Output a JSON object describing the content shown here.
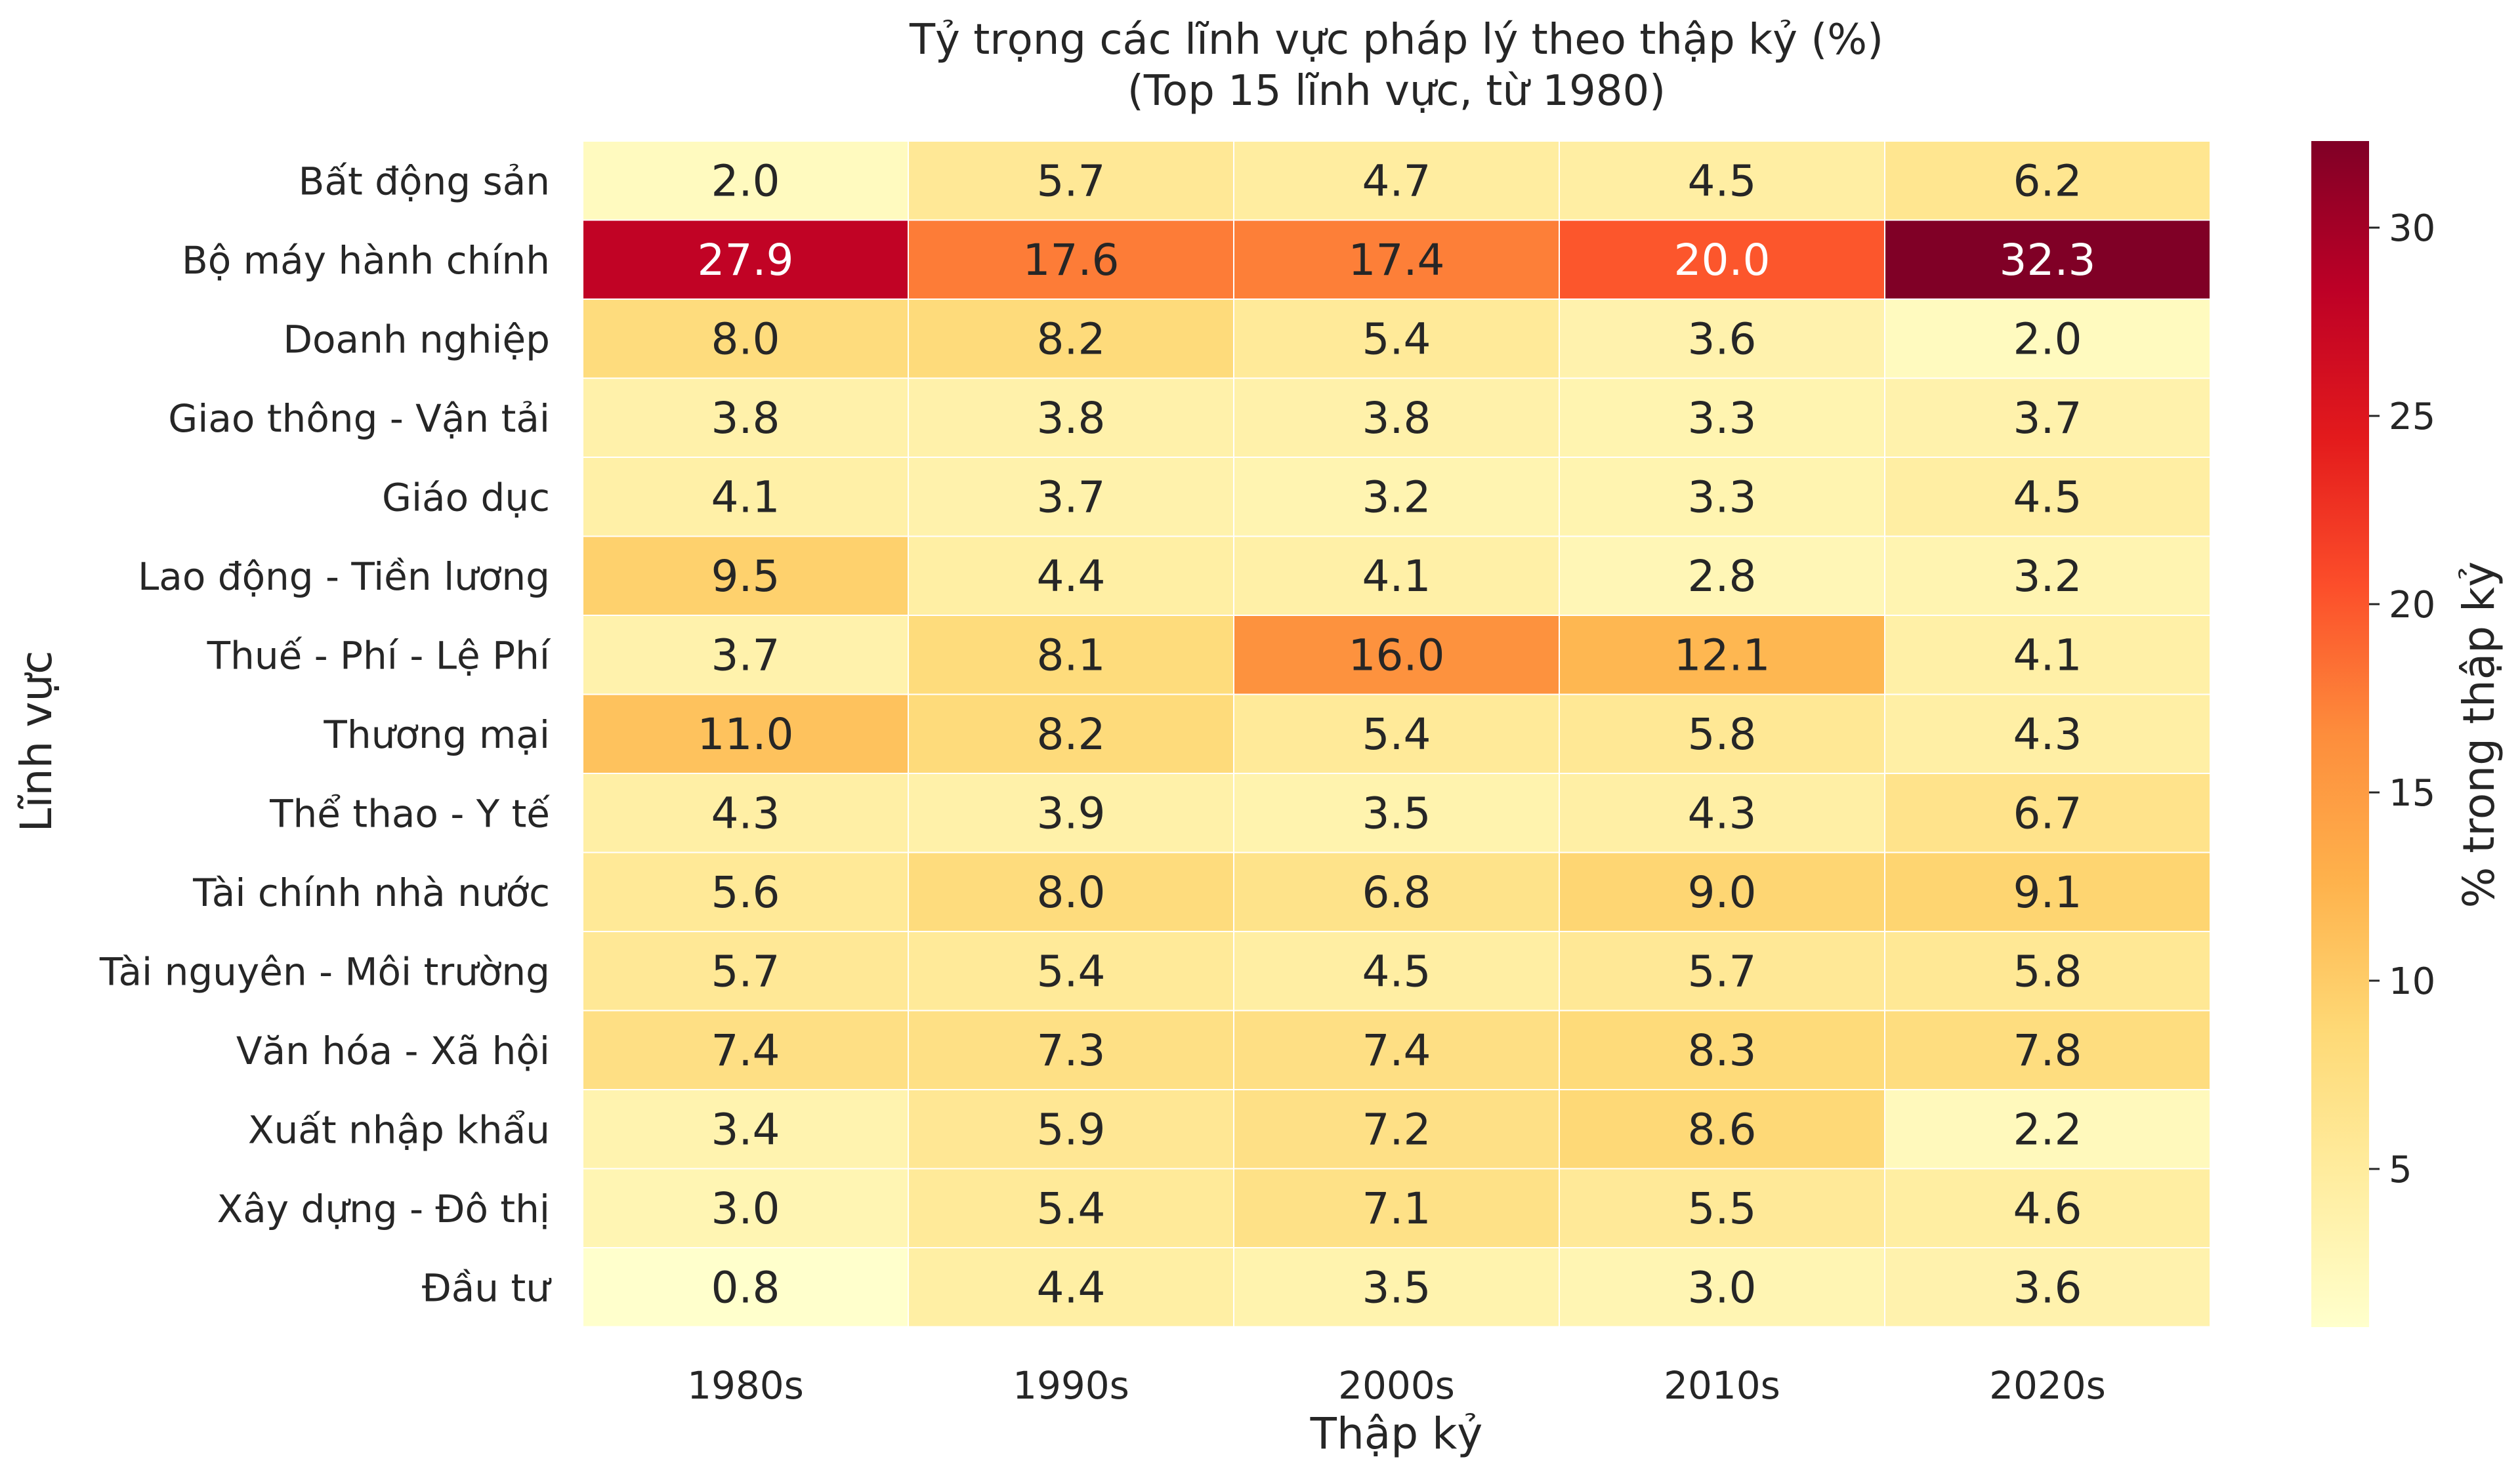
{
  "chart_data": {
    "type": "heatmap",
    "title": "Tỷ trọng các lĩnh vực pháp lý theo thập kỷ (%)",
    "subtitle": "(Top 15 lĩnh vực, từ 1980)",
    "xlabel": "Thập kỷ",
    "ylabel": "Lĩnh vực",
    "colorbar_label": "% trong thập kỷ",
    "colorbar_ticks": [
      "5",
      "10",
      "15",
      "20",
      "25",
      "30"
    ],
    "colorbar_range": [
      0.8,
      32.3
    ],
    "colormap": "YlOrRd",
    "columns": [
      "1980s",
      "1990s",
      "2000s",
      "2010s",
      "2020s"
    ],
    "rows": [
      "Bất động sản",
      "Bộ máy hành chính",
      "Doanh nghiệp",
      "Giao thông - Vận tải",
      "Giáo dục",
      "Lao động - Tiền lương",
      "Thuế - Phí - Lệ Phí",
      "Thương mại",
      "Thể thao - Y tế",
      "Tài chính nhà nước",
      "Tài nguyên - Môi trường",
      "Văn hóa - Xã hội",
      "Xuất nhập khẩu",
      "Xây dựng - Đô thị",
      "Đầu tư"
    ],
    "values": [
      [
        2.0,
        5.7,
        4.7,
        4.5,
        6.2
      ],
      [
        27.9,
        17.6,
        17.4,
        20.0,
        32.3
      ],
      [
        8.0,
        8.2,
        5.4,
        3.6,
        2.0
      ],
      [
        3.8,
        3.8,
        3.8,
        3.3,
        3.7
      ],
      [
        4.1,
        3.7,
        3.2,
        3.3,
        4.5
      ],
      [
        9.5,
        4.4,
        4.1,
        2.8,
        3.2
      ],
      [
        3.7,
        8.1,
        16.0,
        12.1,
        4.1
      ],
      [
        11.0,
        8.2,
        5.4,
        5.8,
        4.3
      ],
      [
        4.3,
        3.9,
        3.5,
        4.3,
        6.7
      ],
      [
        5.6,
        8.0,
        6.8,
        9.0,
        9.1
      ],
      [
        5.7,
        5.4,
        4.5,
        5.7,
        5.8
      ],
      [
        7.4,
        7.3,
        7.4,
        8.3,
        7.8
      ],
      [
        3.4,
        5.9,
        7.2,
        8.6,
        2.2
      ],
      [
        3.0,
        5.4,
        7.1,
        5.5,
        4.6
      ],
      [
        0.8,
        4.4,
        3.5,
        3.0,
        3.6
      ]
    ],
    "value_labels": [
      [
        "2.0",
        "5.7",
        "4.7",
        "4.5",
        "6.2"
      ],
      [
        "27.9",
        "17.6",
        "17.4",
        "20.0",
        "32.3"
      ],
      [
        "8.0",
        "8.2",
        "5.4",
        "3.6",
        "2.0"
      ],
      [
        "3.8",
        "3.8",
        "3.8",
        "3.3",
        "3.7"
      ],
      [
        "4.1",
        "3.7",
        "3.2",
        "3.3",
        "4.5"
      ],
      [
        "9.5",
        "4.4",
        "4.1",
        "2.8",
        "3.2"
      ],
      [
        "3.7",
        "8.1",
        "16.0",
        "12.1",
        "4.1"
      ],
      [
        "11.0",
        "8.2",
        "5.4",
        "5.8",
        "4.3"
      ],
      [
        "4.3",
        "3.9",
        "3.5",
        "4.3",
        "6.7"
      ],
      [
        "5.6",
        "8.0",
        "6.8",
        "9.0",
        "9.1"
      ],
      [
        "5.7",
        "5.4",
        "4.5",
        "5.7",
        "5.8"
      ],
      [
        "7.4",
        "7.3",
        "7.4",
        "8.3",
        "7.8"
      ],
      [
        "3.4",
        "5.9",
        "7.2",
        "8.6",
        "2.2"
      ],
      [
        "3.0",
        "5.4",
        "7.1",
        "5.5",
        "4.6"
      ],
      [
        "0.8",
        "4.4",
        "3.5",
        "3.0",
        "3.6"
      ]
    ]
  }
}
